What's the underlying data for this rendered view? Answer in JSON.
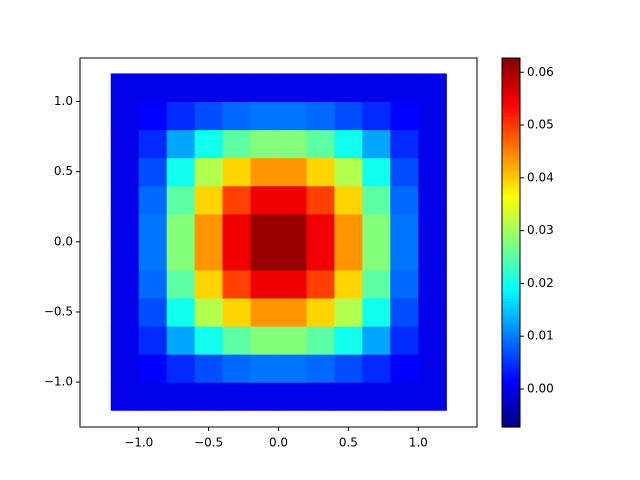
{
  "chart_data": {
    "type": "heatmap",
    "colormap": "jet",
    "x": [
      -1.1,
      -0.9,
      -0.7,
      -0.5,
      -0.3,
      -0.1,
      0.1,
      0.3,
      0.5,
      0.7,
      0.9,
      1.1
    ],
    "y": [
      -1.1,
      -0.9,
      -0.7,
      -0.5,
      -0.3,
      -0.1,
      0.1,
      0.3,
      0.5,
      0.7,
      0.9,
      1.1
    ],
    "z": [
      [
        0,
        0,
        0,
        0,
        0,
        0,
        0,
        0,
        0,
        0,
        0,
        0
      ],
      [
        0,
        0.0015,
        0.0044,
        0.0069,
        0.0087,
        0.0096,
        0.0096,
        0.0087,
        0.0069,
        0.0044,
        0.0015,
        0
      ],
      [
        0,
        0.0044,
        0.0129,
        0.0201,
        0.0253,
        0.028,
        0.028,
        0.0253,
        0.0201,
        0.0129,
        0.0044,
        0
      ],
      [
        0,
        0.0069,
        0.0201,
        0.0312,
        0.0394,
        0.0437,
        0.0437,
        0.0394,
        0.0312,
        0.0201,
        0.0069,
        0
      ],
      [
        0,
        0.0087,
        0.0253,
        0.0394,
        0.0496,
        0.055,
        0.055,
        0.0496,
        0.0394,
        0.0253,
        0.0087,
        0
      ],
      [
        0,
        0.0096,
        0.028,
        0.0437,
        0.055,
        0.061,
        0.061,
        0.055,
        0.0437,
        0.028,
        0.0096,
        0
      ],
      [
        0,
        0.0096,
        0.028,
        0.0437,
        0.055,
        0.061,
        0.061,
        0.055,
        0.0437,
        0.028,
        0.0096,
        0
      ],
      [
        0,
        0.0087,
        0.0253,
        0.0394,
        0.0496,
        0.055,
        0.055,
        0.0496,
        0.0394,
        0.0253,
        0.0087,
        0
      ],
      [
        0,
        0.0069,
        0.0201,
        0.0312,
        0.0394,
        0.0437,
        0.0437,
        0.0394,
        0.0312,
        0.0201,
        0.0069,
        0
      ],
      [
        0,
        0.0044,
        0.0129,
        0.0201,
        0.0253,
        0.028,
        0.028,
        0.0253,
        0.0201,
        0.0129,
        0.0044,
        0
      ],
      [
        0,
        0.0015,
        0.0044,
        0.0069,
        0.0087,
        0.0096,
        0.0096,
        0.0087,
        0.0069,
        0.0044,
        0.0015,
        0
      ],
      [
        0,
        0,
        0,
        0,
        0,
        0,
        0,
        0,
        0,
        0,
        0,
        0
      ]
    ],
    "xlim": [
      -1.42,
      1.42
    ],
    "ylim": [
      -1.32,
      1.31
    ],
    "xticks": [
      {
        "value": -1,
        "label": "−1.0"
      },
      {
        "value": -0.5,
        "label": "−0.5"
      },
      {
        "value": 0,
        "label": "0.0"
      },
      {
        "value": 0.5,
        "label": "0.5"
      },
      {
        "value": 1,
        "label": "1.0"
      }
    ],
    "yticks": [
      {
        "value": -1,
        "label": "−1.0"
      },
      {
        "value": -0.5,
        "label": "−0.5"
      },
      {
        "value": 0,
        "label": "0.0"
      },
      {
        "value": 0.5,
        "label": "0.5"
      },
      {
        "value": 1,
        "label": "1.0"
      }
    ],
    "clim": [
      -0.0072,
      0.0627
    ],
    "cticks": [
      {
        "value": 0,
        "label": "0.00"
      },
      0.01,
      0.02,
      0.03,
      0.04,
      0.05,
      0.06
    ]
  }
}
